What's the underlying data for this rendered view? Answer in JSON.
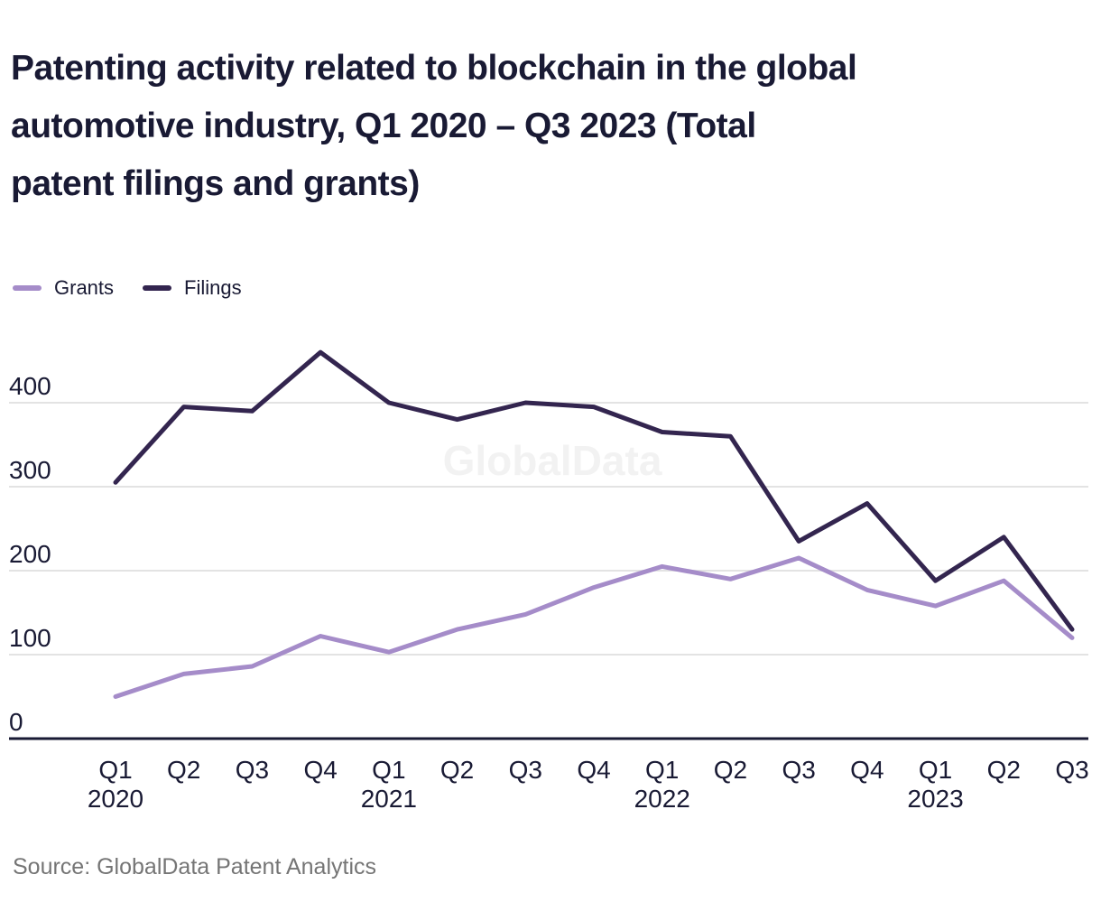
{
  "title": "Patenting activity related to blockchain in the global\nautomotive industry, Q1 2020 – Q3 2023 (Total\npatent filings and grants)",
  "source": "Source: GlobalData Patent Analytics",
  "watermark": "GlobalData",
  "colors": {
    "text": "#191a34",
    "axis": "#191a34",
    "grid": "#e3e3e3",
    "source_text": "#757575",
    "watermark": "#f2f2f2",
    "grants_line": "#a58cc9",
    "filings_line": "#33254f"
  },
  "chart_data": {
    "type": "line",
    "title": "Patenting activity related to blockchain in the global automotive industry, Q1 2020 – Q3 2023 (Total patent filings and grants)",
    "categories": [
      {
        "q": "Q1",
        "year": "2020"
      },
      {
        "q": "Q2",
        "year": ""
      },
      {
        "q": "Q3",
        "year": ""
      },
      {
        "q": "Q4",
        "year": ""
      },
      {
        "q": "Q1",
        "year": "2021"
      },
      {
        "q": "Q2",
        "year": ""
      },
      {
        "q": "Q3",
        "year": ""
      },
      {
        "q": "Q4",
        "year": ""
      },
      {
        "q": "Q1",
        "year": "2022"
      },
      {
        "q": "Q2",
        "year": ""
      },
      {
        "q": "Q3",
        "year": ""
      },
      {
        "q": "Q4",
        "year": ""
      },
      {
        "q": "Q1",
        "year": "2023"
      },
      {
        "q": "Q2",
        "year": ""
      },
      {
        "q": "Q3",
        "year": ""
      }
    ],
    "series": [
      {
        "name": "Grants",
        "color": "#a58cc9",
        "values": [
          50,
          77,
          86,
          122,
          103,
          130,
          148,
          180,
          205,
          190,
          215,
          177,
          158,
          188,
          120
        ]
      },
      {
        "name": "Filings",
        "color": "#33254f",
        "values": [
          305,
          395,
          390,
          460,
          400,
          380,
          400,
          395,
          365,
          360,
          235,
          280,
          188,
          240,
          130
        ]
      }
    ],
    "xlabel": "",
    "ylabel": "",
    "ylim": [
      0,
      480
    ],
    "y_ticks": [
      0,
      100,
      200,
      300,
      400
    ],
    "grid": "horizontal",
    "legend_position": "top-left"
  }
}
